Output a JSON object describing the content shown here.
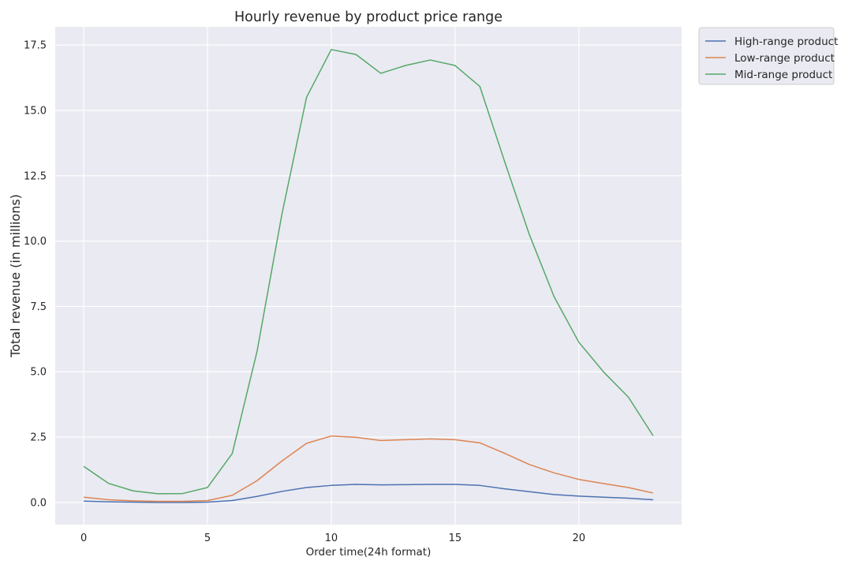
{
  "chart_data": {
    "type": "line",
    "title": "Hourly revenue by product price range",
    "xlabel": "Order time(24h format)",
    "ylabel": "Total revenue (in millions)",
    "x": [
      0,
      1,
      2,
      3,
      4,
      5,
      6,
      7,
      8,
      9,
      10,
      11,
      12,
      13,
      14,
      15,
      16,
      17,
      18,
      19,
      20,
      21,
      22,
      23
    ],
    "xlim": [
      -1.15,
      24.15
    ],
    "ylim": [
      -0.85,
      18.2
    ],
    "x_ticks": [
      0,
      5,
      10,
      15,
      20
    ],
    "y_ticks": [
      0.0,
      2.5,
      5.0,
      7.5,
      10.0,
      12.5,
      15.0,
      17.5
    ],
    "grid": true,
    "legend_position": "outside-top-right",
    "series": [
      {
        "name": "High-range product",
        "color": "#4c72b0",
        "values": [
          0.05,
          0.02,
          0.01,
          0.0,
          0.0,
          0.01,
          0.07,
          0.23,
          0.42,
          0.57,
          0.65,
          0.69,
          0.67,
          0.68,
          0.69,
          0.69,
          0.65,
          0.52,
          0.41,
          0.3,
          0.24,
          0.2,
          0.16,
          0.1
        ]
      },
      {
        "name": "Low-range product",
        "color": "#dd8452",
        "values": [
          0.2,
          0.1,
          0.06,
          0.04,
          0.04,
          0.07,
          0.27,
          0.83,
          1.58,
          2.26,
          2.54,
          2.49,
          2.37,
          2.4,
          2.43,
          2.4,
          2.28,
          1.88,
          1.45,
          1.13,
          0.88,
          0.72,
          0.57,
          0.36
        ]
      },
      {
        "name": "Mid-range product",
        "color": "#55a868",
        "values": [
          1.38,
          0.73,
          0.44,
          0.33,
          0.34,
          0.57,
          1.87,
          5.77,
          11.0,
          15.5,
          17.33,
          17.14,
          16.42,
          16.72,
          16.93,
          16.72,
          15.92,
          13.05,
          10.25,
          7.87,
          6.13,
          4.99,
          4.03,
          2.55
        ]
      }
    ]
  }
}
